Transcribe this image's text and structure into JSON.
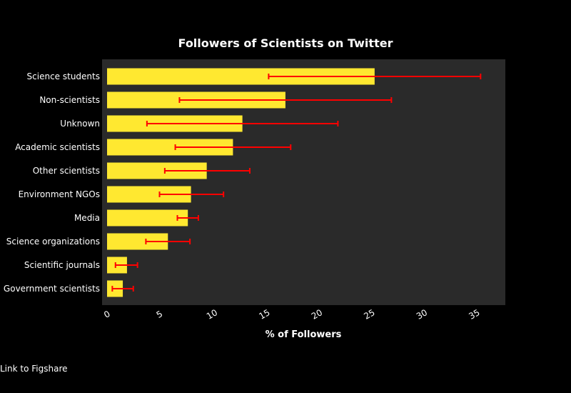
{
  "chart_data": {
    "type": "bar",
    "orientation": "horizontal",
    "title": "Followers of Scientists on Twitter",
    "xlabel": "% of Followers",
    "ylabel": "",
    "xlim": [
      0,
      38
    ],
    "x_ticks": [
      "0",
      "5",
      "10",
      "15",
      "20",
      "25",
      "30",
      "35"
    ],
    "categories": [
      "Science students",
      "Non-scientists",
      "Unknown",
      "Academic scientists",
      "Other scientists",
      "Environment NGOs",
      "Media",
      "Science organizations",
      "Scientific journals",
      "Government scientists"
    ],
    "values": [
      25.5,
      17,
      12.9,
      12,
      9.5,
      8,
      7.7,
      5.8,
      1.9,
      1.5
    ],
    "error_low": [
      15.4,
      6.9,
      3.8,
      6.5,
      5.5,
      5.0,
      6.7,
      3.7,
      0.8,
      0.5
    ],
    "error_high": [
      35.6,
      27.1,
      22.0,
      17.5,
      13.6,
      11.1,
      8.7,
      7.9,
      2.9,
      2.5
    ],
    "grid": false,
    "legend": "none",
    "colors": {
      "bar": "#ffe830",
      "error_bar": "#ff0000",
      "plot_bg": "#2a2a2a",
      "page_bg": "#000000",
      "text": "#ffffff"
    }
  },
  "footer": {
    "link_text": "Link to Figshare"
  }
}
